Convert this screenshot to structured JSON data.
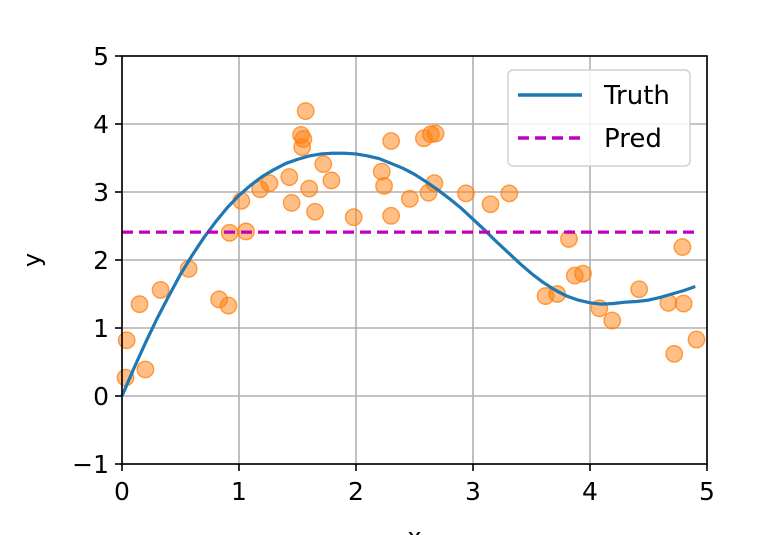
{
  "chart_data": {
    "type": "scatter",
    "xlabel": "x",
    "ylabel": "y",
    "xlim": [
      0,
      5
    ],
    "ylim": [
      -1,
      5
    ],
    "xticks": [
      0,
      1,
      2,
      3,
      4,
      5
    ],
    "yticks": [
      -1,
      0,
      1,
      2,
      3,
      4,
      5
    ],
    "xtick_labels": [
      "0",
      "1",
      "2",
      "3",
      "4",
      "5"
    ],
    "ytick_labels": [
      "−1",
      "0",
      "1",
      "2",
      "3",
      "4",
      "5"
    ],
    "grid": true,
    "legend_position": "top-right",
    "series": [
      {
        "name": "Truth",
        "kind": "line",
        "color": "#1f77b4",
        "style": "solid",
        "x": [
          0.0,
          0.1,
          0.2,
          0.3,
          0.4,
          0.5,
          0.6,
          0.7,
          0.8,
          0.9,
          1.0,
          1.1,
          1.2,
          1.3,
          1.4,
          1.5,
          1.6,
          1.7,
          1.8,
          1.9,
          2.0,
          2.1,
          2.2,
          2.3,
          2.4,
          2.5,
          2.6,
          2.7,
          2.8,
          2.9,
          3.0,
          3.1,
          3.2,
          3.3,
          3.4,
          3.5,
          3.6,
          3.7,
          3.8,
          3.9,
          4.0,
          4.1,
          4.2,
          4.3,
          4.4,
          4.5,
          4.6,
          4.7,
          4.8,
          4.9
        ],
        "y": [
          0.0,
          0.4,
          0.78,
          1.14,
          1.47,
          1.79,
          2.07,
          2.33,
          2.56,
          2.77,
          2.95,
          3.1,
          3.23,
          3.33,
          3.42,
          3.48,
          3.53,
          3.56,
          3.57,
          3.57,
          3.56,
          3.53,
          3.49,
          3.42,
          3.35,
          3.26,
          3.15,
          3.03,
          2.9,
          2.76,
          2.6,
          2.44,
          2.27,
          2.11,
          1.95,
          1.8,
          1.67,
          1.56,
          1.47,
          1.41,
          1.37,
          1.35,
          1.36,
          1.38,
          1.39,
          1.41,
          1.45,
          1.5,
          1.55,
          1.61
        ]
      },
      {
        "name": "Pred",
        "kind": "line",
        "color": "#bf00bf",
        "style": "dashed",
        "x": [
          0.0,
          4.9
        ],
        "y": [
          2.41,
          2.41
        ]
      },
      {
        "kind": "scatter",
        "color": "#ff7f0e",
        "opacity": 0.5,
        "x": [
          0.03,
          0.04,
          0.15,
          0.2,
          0.33,
          0.57,
          0.83,
          0.91,
          0.92,
          1.02,
          1.06,
          1.18,
          1.26,
          1.43,
          1.45,
          1.53,
          1.54,
          1.55,
          1.57,
          1.6,
          1.65,
          1.72,
          1.79,
          1.98,
          2.22,
          2.24,
          2.3,
          2.3,
          2.46,
          2.58,
          2.62,
          2.64,
          2.67,
          2.68,
          2.94,
          3.15,
          3.31,
          3.62,
          3.72,
          3.82,
          3.87,
          3.94,
          4.08,
          4.19,
          4.42,
          4.67,
          4.72,
          4.79,
          4.8,
          4.91
        ],
        "y": [
          0.27,
          0.82,
          1.35,
          0.39,
          1.56,
          1.87,
          1.42,
          1.33,
          2.4,
          2.87,
          2.42,
          3.04,
          3.13,
          3.22,
          2.84,
          3.84,
          3.66,
          3.78,
          4.19,
          3.05,
          2.71,
          3.41,
          3.17,
          2.63,
          3.3,
          3.09,
          3.75,
          2.65,
          2.9,
          3.79,
          2.99,
          3.85,
          3.13,
          3.86,
          2.98,
          2.82,
          2.98,
          1.47,
          1.5,
          2.31,
          1.77,
          1.8,
          1.29,
          1.11,
          1.57,
          1.37,
          0.62,
          2.19,
          1.36,
          0.83
        ]
      }
    ]
  }
}
